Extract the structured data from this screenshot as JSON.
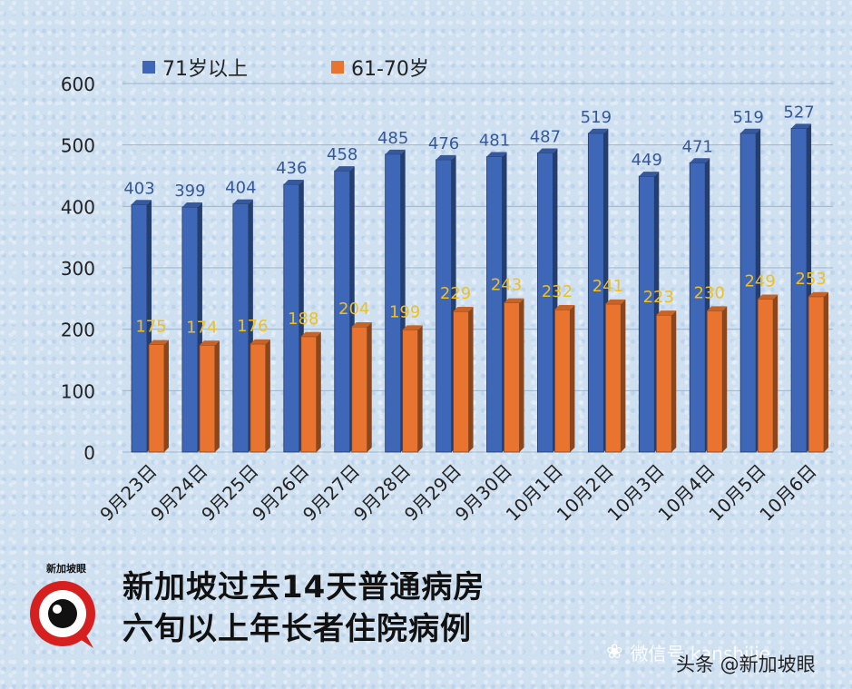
{
  "chart_data": {
    "type": "bar",
    "categories": [
      "9月23日",
      "9月24日",
      "9月25日",
      "9月26日",
      "9月27日",
      "9月28日",
      "9月29日",
      "9月30日",
      "10月1日",
      "10月2日",
      "10月3日",
      "10月4日",
      "10月5日",
      "10月6日"
    ],
    "series": [
      {
        "name": "71岁以上",
        "color": "#3f67b8",
        "label_color": "#34589a",
        "values": [
          403,
          399,
          404,
          436,
          458,
          485,
          476,
          481,
          487,
          519,
          449,
          471,
          519,
          527
        ]
      },
      {
        "name": "61-70岁",
        "color": "#e8742f",
        "label_color": "#f0c020",
        "values": [
          175,
          174,
          176,
          188,
          204,
          199,
          229,
          243,
          232,
          241,
          223,
          230,
          249,
          253
        ]
      }
    ],
    "ylim": [
      0,
      600
    ],
    "yticks": [
      0,
      100,
      200,
      300,
      400,
      500,
      600
    ],
    "grid": true,
    "legend": "top-left",
    "title": "新加坡过去14天普通病房\n六旬以上年长者住院病例"
  },
  "footer": {
    "title_line1": "新加坡过去14天普通病房",
    "title_line2": "六旬以上年长者住院病例",
    "logo_text": "新加坡眼",
    "watermark": "微信号 kanshijie",
    "credit": "头条 @新加坡眼"
  }
}
